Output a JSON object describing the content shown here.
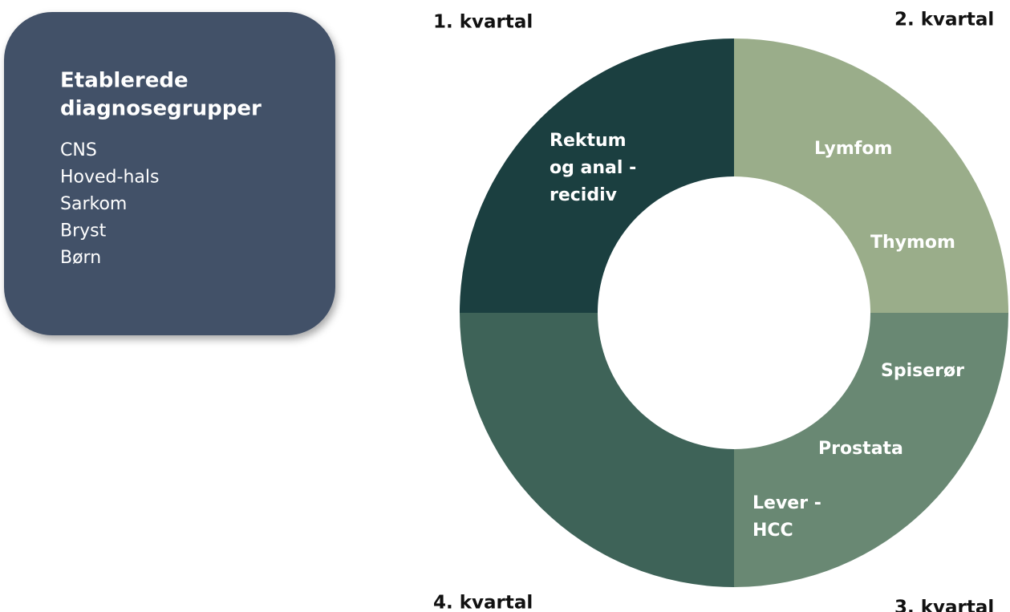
{
  "panel": {
    "title": [
      "Etablerede",
      "diagnosegrupper"
    ],
    "items": [
      "CNS",
      "Hoved-hals",
      "Sarkom",
      "Bryst",
      "Børn"
    ]
  },
  "quarters": [
    {
      "label": "1. kvartal",
      "color": "#1b3f40",
      "items": [
        [
          "Rektum",
          "og anal -",
          "recidiv"
        ]
      ]
    },
    {
      "label": "2. kvartal",
      "color": "#9aad8a",
      "items": [
        [
          "Lymfom"
        ],
        [
          "Thymom"
        ]
      ]
    },
    {
      "label": "3. kvartal",
      "color": "#698873",
      "items": [
        [
          "Spiserør"
        ],
        [
          "Prostata"
        ],
        [
          "Lever -",
          "HCC"
        ]
      ]
    },
    {
      "label": "4. kvartal",
      "color": "#3e6358",
      "items": []
    }
  ]
}
